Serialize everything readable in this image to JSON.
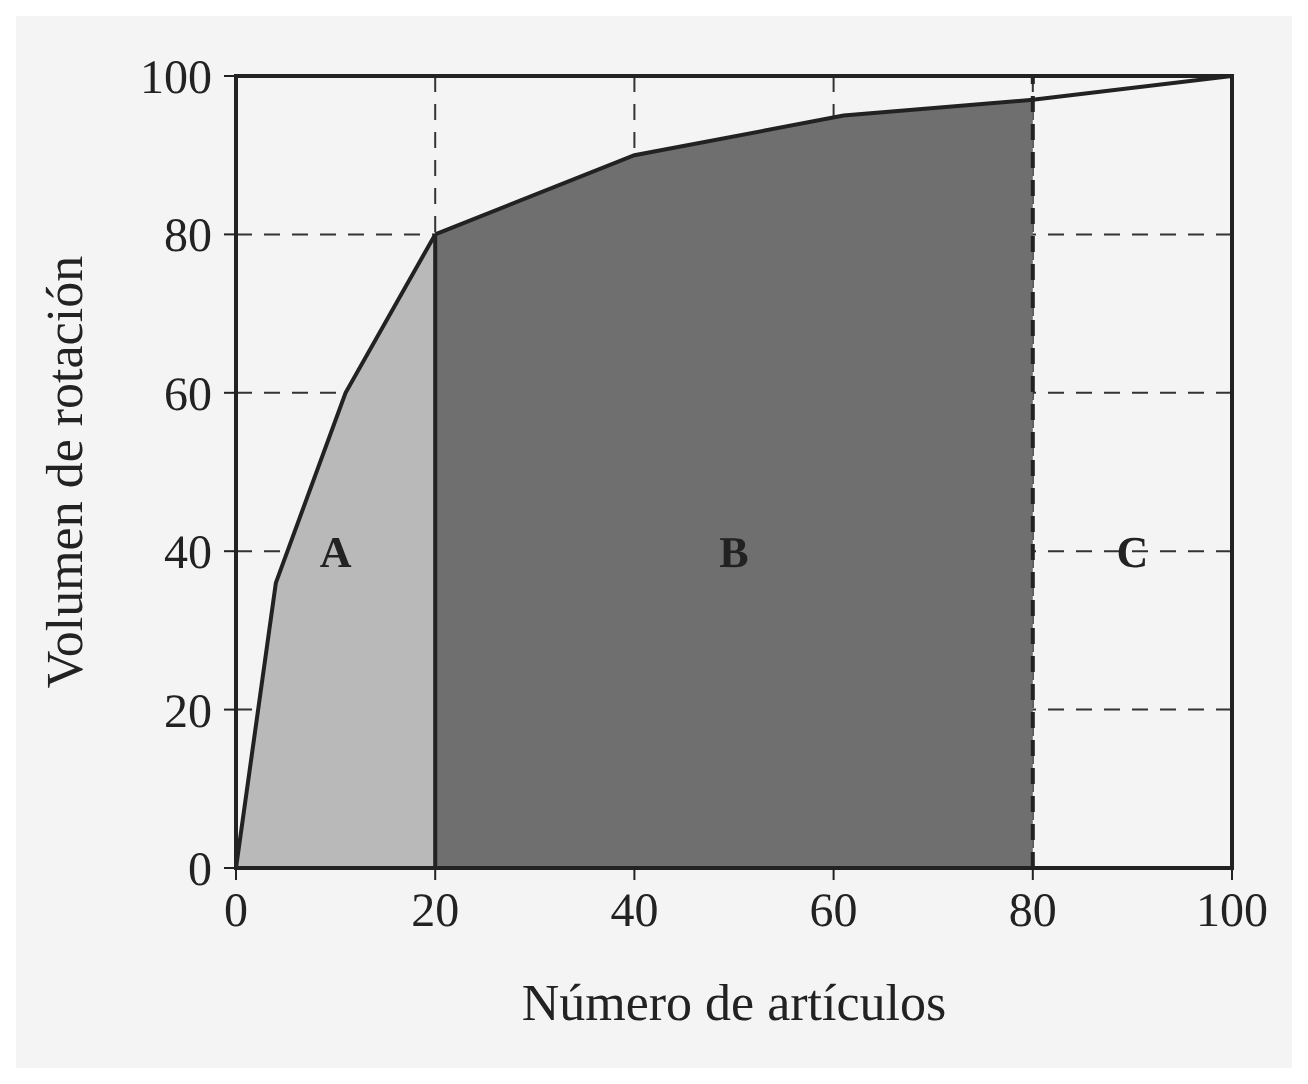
{
  "chart_data": {
    "type": "area",
    "xlabel": "Número de artículos",
    "ylabel": "Volumen de rotación",
    "xlim": [
      0,
      100
    ],
    "ylim": [
      0,
      100
    ],
    "xticks": [
      0,
      20,
      40,
      60,
      80,
      100
    ],
    "yticks": [
      0,
      20,
      40,
      60,
      80,
      100
    ],
    "grid": true,
    "legend": false,
    "series": [
      {
        "color": "#b9b9b9",
        "x": [
          0,
          4,
          11,
          20
        ],
        "values": [
          0,
          36,
          60,
          80
        ]
      },
      {
        "color": "#6f6f6f",
        "x": [
          20,
          40,
          61,
          80
        ],
        "values": [
          80,
          90,
          95,
          97
        ]
      },
      {
        "type": "line",
        "color": "#222222",
        "x": [
          80,
          100
        ],
        "values": [
          97,
          100
        ]
      }
    ],
    "ref_lines": [
      {
        "axis": "x",
        "value": 20,
        "line_style": "solid",
        "color": "#222222"
      },
      {
        "axis": "x",
        "value": 80,
        "line_style": "dashed",
        "color": "#222222"
      }
    ],
    "annotations": [
      "A",
      "B",
      "C"
    ]
  }
}
